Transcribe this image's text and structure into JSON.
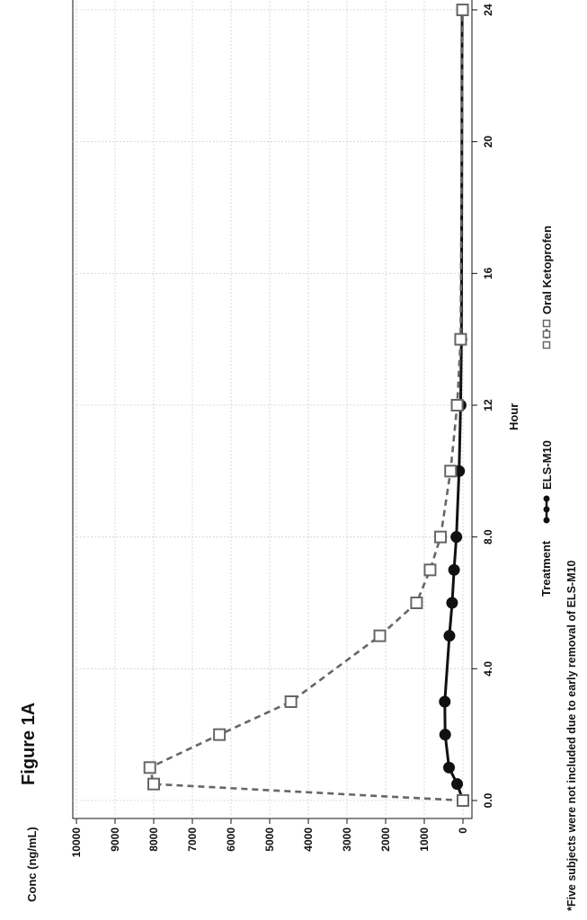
{
  "figure_label": "Figure 1A",
  "footnote": "*Five subjects were not included due to early removal of ELS-M10",
  "chart_data": {
    "type": "line",
    "orientation": "rotated 90° counter-clockwise",
    "xlabel": "Hour",
    "ylabel": "Conc (ng/mL)",
    "xlim": [
      0,
      24
    ],
    "ylim": [
      0,
      10000
    ],
    "xticks": [
      0,
      4,
      8,
      12,
      16,
      20,
      24
    ],
    "xtick_labels": [
      "0.0",
      "4.0",
      "8.0",
      "12",
      "16",
      "20",
      "24"
    ],
    "yticks": [
      0,
      1000,
      2000,
      3000,
      4000,
      5000,
      6000,
      7000,
      8000,
      9000,
      10000
    ],
    "ytick_labels": [
      "0",
      "1000",
      "2000",
      "3000",
      "4000",
      "5000",
      "6000",
      "7000",
      "8000",
      "9000",
      "10000"
    ],
    "grid": true,
    "legend_title": "Treatment",
    "legend_position": "bottom",
    "series": [
      {
        "name": "ELS-M10",
        "color": "#111111",
        "line": "solid",
        "marker": "filled-circle",
        "x": [
          0,
          0.5,
          1,
          2,
          3,
          5,
          6,
          7,
          8,
          10,
          12,
          14,
          24
        ],
        "y": [
          0,
          150,
          360,
          460,
          470,
          350,
          280,
          230,
          170,
          100,
          60,
          40,
          20
        ]
      },
      {
        "name": "Oral Ketoprofen",
        "color": "#666666",
        "line": "dashed",
        "marker": "open-square",
        "x": [
          0,
          0.5,
          1,
          2,
          3,
          5,
          6,
          7,
          8,
          10,
          12,
          14,
          24
        ],
        "y": [
          0,
          8000,
          8100,
          6300,
          4450,
          2150,
          1200,
          850,
          580,
          320,
          150,
          60,
          10
        ]
      }
    ]
  }
}
